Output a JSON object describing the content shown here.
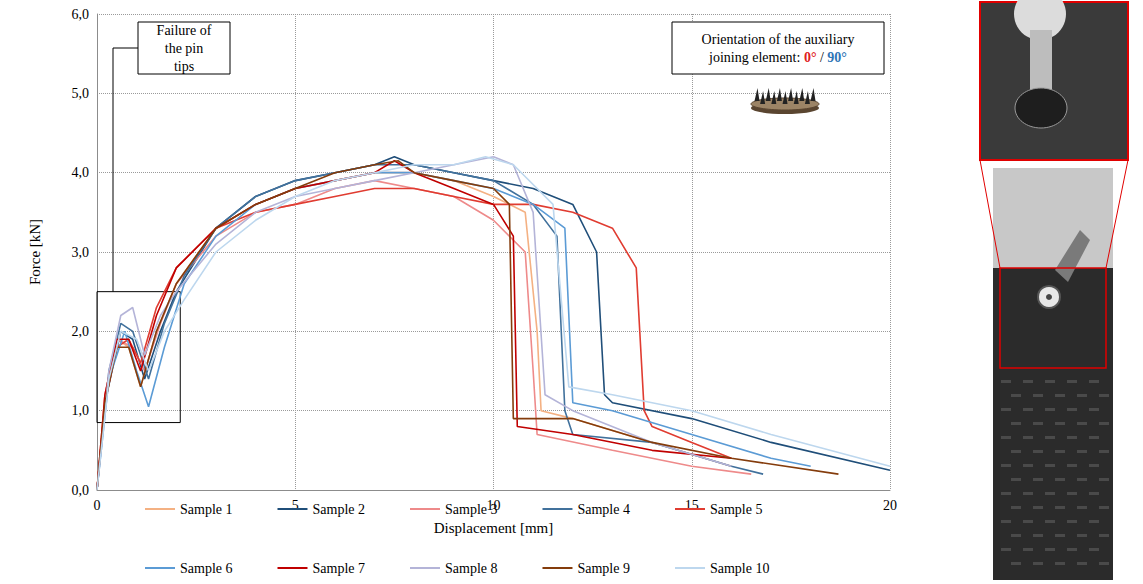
{
  "chart_data": {
    "type": "line",
    "xlabel": "Displacement [mm]",
    "ylabel": "Force [kN]",
    "xlim": [
      0,
      20
    ],
    "xticks": [
      0,
      5,
      10,
      15,
      20
    ],
    "ylim": [
      0,
      6
    ],
    "yticks": [
      {
        "value": 0,
        "label": "0,0"
      },
      {
        "value": 1,
        "label": "1,0"
      },
      {
        "value": 2,
        "label": "2,0"
      },
      {
        "value": 3,
        "label": "3,0"
      },
      {
        "value": 4,
        "label": "4,0"
      },
      {
        "value": 5,
        "label": "5,0"
      },
      {
        "value": 6,
        "label": "6,0"
      }
    ],
    "grid": true,
    "legend": "bottom",
    "series": [
      {
        "name": "Sample 1",
        "color": "#f4b183",
        "x": [
          0,
          0.2,
          0.5,
          0.8,
          1.1,
          1.5,
          2,
          3,
          4,
          5,
          6,
          7,
          8,
          9,
          10,
          10.8,
          11.1,
          11.2,
          12,
          14,
          16
        ],
        "values": [
          0,
          1.2,
          1.9,
          1.8,
          1.3,
          2.0,
          2.6,
          3.3,
          3.6,
          3.8,
          3.9,
          4.0,
          4.0,
          3.9,
          3.7,
          3.5,
          2.0,
          1.0,
          0.9,
          0.6,
          0.3
        ]
      },
      {
        "name": "Sample 2",
        "color": "#1f4e79",
        "x": [
          0,
          0.2,
          0.6,
          0.9,
          1.2,
          1.6,
          2,
          3,
          4,
          5,
          6,
          7,
          7.5,
          8,
          9,
          10,
          11,
          12,
          12.6,
          12.8,
          13,
          15,
          17,
          20
        ],
        "values": [
          0,
          1.1,
          2.0,
          1.9,
          1.4,
          2.0,
          2.5,
          3.3,
          3.7,
          3.9,
          4.0,
          4.1,
          4.2,
          4.1,
          4.0,
          3.9,
          3.8,
          3.6,
          3.0,
          1.2,
          1.1,
          0.9,
          0.6,
          0.25
        ]
      },
      {
        "name": "Sample 3",
        "color": "#ee8a8a",
        "x": [
          0,
          0.2,
          0.5,
          0.9,
          1.2,
          1.6,
          2,
          3,
          4,
          5,
          6,
          7,
          8,
          9,
          10,
          10.8,
          11,
          11.1,
          13,
          15,
          16.5
        ],
        "values": [
          0,
          1.2,
          1.9,
          1.8,
          1.5,
          2.1,
          2.6,
          3.2,
          3.5,
          3.6,
          3.8,
          3.9,
          3.8,
          3.7,
          3.4,
          3.0,
          1.5,
          0.7,
          0.5,
          0.3,
          0.2
        ]
      },
      {
        "name": "Sample 4",
        "color": "#41719c",
        "x": [
          0,
          0.3,
          0.6,
          0.9,
          1.3,
          1.7,
          2.2,
          3,
          4,
          5,
          6,
          7,
          8,
          9,
          10,
          11,
          11.6,
          11.8,
          12,
          14,
          16,
          16.8
        ],
        "values": [
          0,
          1.5,
          2.1,
          2.0,
          1.4,
          2.1,
          2.7,
          3.3,
          3.7,
          3.9,
          4.0,
          4.1,
          4.1,
          4.0,
          3.9,
          3.6,
          3.2,
          1.0,
          0.7,
          0.6,
          0.3,
          0.2
        ]
      },
      {
        "name": "Sample 5",
        "color": "#e03c31",
        "x": [
          0,
          0.2,
          0.5,
          0.8,
          1.1,
          1.5,
          2,
          3,
          4,
          5,
          6,
          7,
          8,
          9,
          10,
          11,
          12,
          13,
          13.6,
          13.8,
          14,
          15,
          16
        ],
        "values": [
          0,
          1.1,
          1.8,
          1.9,
          1.6,
          2.3,
          2.8,
          3.3,
          3.5,
          3.6,
          3.7,
          3.8,
          3.8,
          3.7,
          3.6,
          3.6,
          3.5,
          3.3,
          2.8,
          1.0,
          0.8,
          0.6,
          0.4
        ]
      },
      {
        "name": "Sample 6",
        "color": "#5b9bd5",
        "x": [
          0,
          0.3,
          0.7,
          1.0,
          1.3,
          1.7,
          2.2,
          3,
          4,
          5,
          6,
          7,
          8,
          9,
          10,
          11,
          11.8,
          12,
          13,
          15,
          17,
          18
        ],
        "values": [
          0,
          1.4,
          2.0,
          1.5,
          1.05,
          1.8,
          2.6,
          3.2,
          3.6,
          3.8,
          3.9,
          4.0,
          4.0,
          3.9,
          3.8,
          3.6,
          3.3,
          1.1,
          1.0,
          0.7,
          0.4,
          0.3
        ]
      },
      {
        "name": "Sample 7",
        "color": "#c00000",
        "x": [
          0,
          0.2,
          0.5,
          0.8,
          1.1,
          1.5,
          2,
          3,
          4,
          5,
          6,
          7,
          7.5,
          8,
          9,
          10,
          10.5,
          10.6,
          12,
          14,
          16
        ],
        "values": [
          0,
          1.2,
          1.9,
          1.9,
          1.5,
          2.2,
          2.8,
          3.3,
          3.6,
          3.8,
          3.9,
          4.0,
          4.15,
          4.0,
          3.8,
          3.6,
          3.2,
          0.8,
          0.7,
          0.5,
          0.4
        ]
      },
      {
        "name": "Sample 8",
        "color": "#b4b4d8",
        "x": [
          0,
          0.3,
          0.6,
          0.9,
          1.2,
          1.6,
          2,
          3,
          4,
          5,
          6,
          7,
          8,
          9,
          10,
          10.5,
          11,
          11.3,
          12,
          14,
          16
        ],
        "values": [
          0,
          1.5,
          2.2,
          2.3,
          1.7,
          2.2,
          2.5,
          3.1,
          3.5,
          3.7,
          3.8,
          3.9,
          4.0,
          4.1,
          4.2,
          4.1,
          3.5,
          1.2,
          1.0,
          0.6,
          0.3
        ]
      },
      {
        "name": "Sample 9",
        "color": "#843c0c",
        "x": [
          0,
          0.2,
          0.5,
          0.8,
          1.1,
          1.5,
          2,
          3,
          4,
          5,
          6,
          7,
          7.6,
          8,
          9,
          10,
          10.4,
          10.5,
          12,
          14,
          16,
          18.7
        ],
        "values": [
          0,
          1.1,
          1.8,
          1.8,
          1.3,
          2.0,
          2.6,
          3.3,
          3.6,
          3.8,
          4.0,
          4.1,
          4.15,
          4.0,
          3.9,
          3.8,
          3.6,
          0.9,
          0.9,
          0.6,
          0.4,
          0.2
        ]
      },
      {
        "name": "Sample 10",
        "color": "#bdd7ee",
        "x": [
          0,
          0.3,
          0.6,
          1.0,
          1.3,
          1.7,
          2.2,
          3,
          4,
          5,
          6,
          7,
          8,
          9,
          9.8,
          10.5,
          11.5,
          11.9,
          13,
          15,
          17,
          20
        ],
        "values": [
          0,
          1.4,
          2.0,
          1.9,
          1.5,
          2.0,
          2.4,
          3.0,
          3.4,
          3.7,
          3.9,
          4.0,
          4.1,
          4.1,
          4.2,
          4.1,
          3.6,
          1.3,
          1.2,
          1.0,
          0.7,
          0.3
        ]
      }
    ],
    "annotations": [
      {
        "text": "Failure of the pin tips",
        "xrange": [
          0,
          2.1
        ],
        "yrange": [
          0.85,
          2.5
        ]
      },
      {
        "text": "Orientation of the auxiliary joining element:",
        "labels": [
          {
            "text": "0°",
            "color": "#e02020"
          },
          {
            "text": "90°",
            "color": "#2e75b6"
          }
        ],
        "separator": "/"
      }
    ]
  }
}
